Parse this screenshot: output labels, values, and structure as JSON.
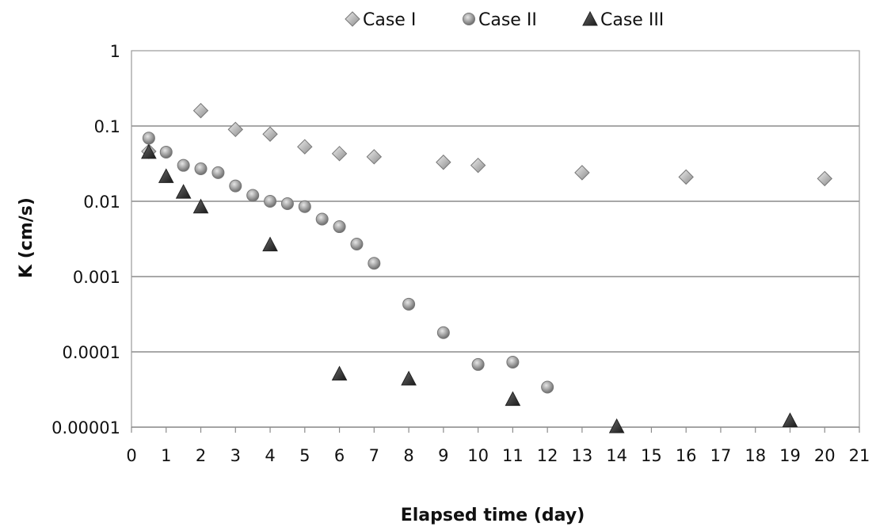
{
  "chart_data": {
    "type": "scatter",
    "title": "",
    "xlabel": "Elapsed time (day)",
    "ylabel": "K (cm/s)",
    "xlim": [
      0,
      21
    ],
    "ylim": [
      1e-05,
      1
    ],
    "yscale": "log",
    "x_ticks": [
      "0",
      "1",
      "2",
      "3",
      "4",
      "5",
      "6",
      "7",
      "8",
      "9",
      "10",
      "11",
      "12",
      "13",
      "14",
      "15",
      "16",
      "17",
      "18",
      "19",
      "20",
      "21"
    ],
    "y_ticks": [
      "1",
      "0.1",
      "0.01",
      "0.001",
      "0.0001",
      "0.00001"
    ],
    "y_tick_values": [
      1,
      0.1,
      0.01,
      0.001,
      0.0001,
      1e-05
    ],
    "grid": "horizontal",
    "legend_position": "top",
    "series": [
      {
        "name": "Case I",
        "marker": "diamond",
        "color": "#b8b8b8",
        "x": [
          0.5,
          2,
          3,
          4,
          5,
          6,
          7,
          9,
          10,
          13,
          16,
          20
        ],
        "y": [
          0.046,
          0.16,
          0.09,
          0.078,
          0.053,
          0.043,
          0.039,
          0.033,
          0.03,
          0.024,
          0.021,
          0.02
        ]
      },
      {
        "name": "Case II",
        "marker": "circle",
        "color": "#a9a9a9",
        "x": [
          0.5,
          1,
          1.5,
          2,
          2.5,
          3,
          3.5,
          4,
          4.5,
          5,
          5.5,
          6,
          6.5,
          7,
          8,
          9,
          10,
          11,
          12
        ],
        "y": [
          0.069,
          0.045,
          0.03,
          0.027,
          0.024,
          0.016,
          0.012,
          0.01,
          0.0093,
          0.0085,
          0.0058,
          0.0046,
          0.0027,
          0.0015,
          0.00043,
          0.00018,
          6.8e-05,
          7.3e-05,
          3.4e-05
        ]
      },
      {
        "name": "Case III",
        "marker": "triangle",
        "color": "#2e2e2e",
        "x": [
          0.5,
          1,
          1.5,
          2,
          4,
          6,
          8,
          11,
          14,
          19
        ],
        "y": [
          0.044,
          0.021,
          0.013,
          0.0083,
          0.0026,
          5e-05,
          4.3e-05,
          2.3e-05,
          1e-05,
          1.2e-05
        ]
      }
    ]
  }
}
